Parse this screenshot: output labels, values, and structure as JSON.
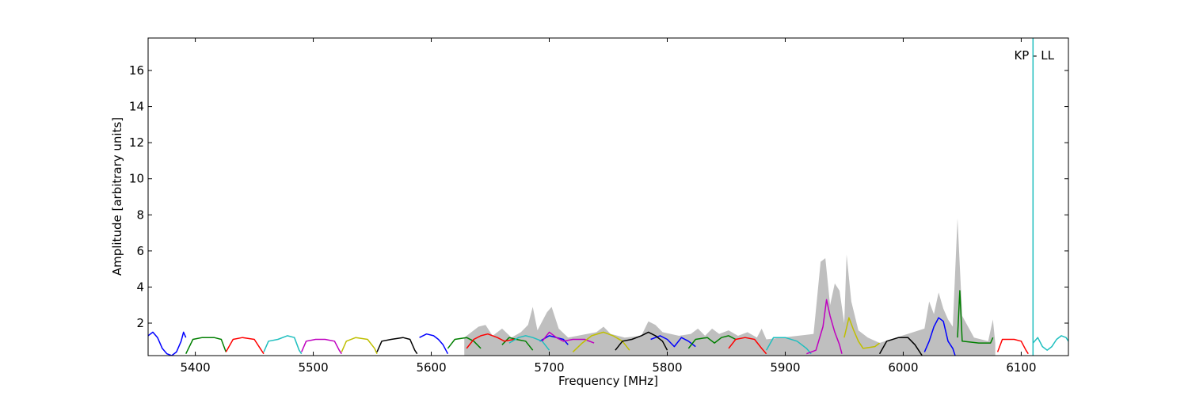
{
  "chart_data": {
    "type": "line",
    "title": "",
    "xlabel": "Frequency [MHz]",
    "ylabel": "Amplitude [arbitrary units]",
    "xlim": [
      5360,
      6140
    ],
    "ylim": [
      0.2,
      17.8
    ],
    "x_ticks": [
      5400,
      5500,
      5600,
      5700,
      5800,
      5900,
      6000,
      6100
    ],
    "y_ticks": [
      2,
      4,
      6,
      8,
      10,
      12,
      14,
      16
    ],
    "grid": false,
    "legend": "none",
    "annotation": "KP - LL",
    "spike": {
      "x": 6110,
      "y": 17.8,
      "color": "#1fbfbf"
    },
    "envelope": {
      "color": "#bfbfbf",
      "points": [
        [
          5628,
          1.2
        ],
        [
          5640,
          1.8
        ],
        [
          5646,
          1.9
        ],
        [
          5652,
          1.3
        ],
        [
          5660,
          1.7
        ],
        [
          5668,
          1.2
        ],
        [
          5676,
          1.5
        ],
        [
          5682,
          1.9
        ],
        [
          5686,
          2.9
        ],
        [
          5690,
          1.6
        ],
        [
          5694,
          2.1
        ],
        [
          5698,
          2.6
        ],
        [
          5702,
          2.9
        ],
        [
          5708,
          1.7
        ],
        [
          5716,
          1.2
        ],
        [
          5740,
          1.5
        ],
        [
          5746,
          1.8
        ],
        [
          5752,
          1.4
        ],
        [
          5764,
          1.2
        ],
        [
          5778,
          1.3
        ],
        [
          5784,
          2.1
        ],
        [
          5790,
          1.9
        ],
        [
          5796,
          1.5
        ],
        [
          5810,
          1.3
        ],
        [
          5820,
          1.4
        ],
        [
          5826,
          1.7
        ],
        [
          5832,
          1.3
        ],
        [
          5838,
          1.7
        ],
        [
          5844,
          1.4
        ],
        [
          5852,
          1.6
        ],
        [
          5860,
          1.3
        ],
        [
          5868,
          1.5
        ],
        [
          5876,
          1.2
        ],
        [
          5880,
          1.7
        ],
        [
          5884,
          1.1
        ],
        [
          5924,
          1.4
        ],
        [
          5930,
          5.4
        ],
        [
          5934,
          5.6
        ],
        [
          5938,
          3.0
        ],
        [
          5942,
          4.2
        ],
        [
          5946,
          3.8
        ],
        [
          5950,
          2.0
        ],
        [
          5952,
          5.8
        ],
        [
          5956,
          3.2
        ],
        [
          5962,
          1.6
        ],
        [
          5970,
          1.2
        ],
        [
          5980,
          0.9
        ],
        [
          6018,
          1.7
        ],
        [
          6022,
          3.2
        ],
        [
          6026,
          2.5
        ],
        [
          6030,
          3.7
        ],
        [
          6034,
          2.8
        ],
        [
          6038,
          2.2
        ],
        [
          6042,
          1.8
        ],
        [
          6046,
          7.8
        ],
        [
          6050,
          2.4
        ],
        [
          6060,
          1.2
        ],
        [
          6072,
          1.0
        ],
        [
          6076,
          2.2
        ],
        [
          6078,
          0.9
        ]
      ]
    },
    "series": [
      {
        "color": "#0000ff",
        "segments": [
          [
            [
              5360,
              1.3
            ],
            [
              5364,
              1.5
            ],
            [
              5368,
              1.2
            ],
            [
              5372,
              0.6
            ],
            [
              5376,
              0.3
            ],
            [
              5380,
              0.2
            ],
            [
              5384,
              0.4
            ],
            [
              5388,
              1.0
            ],
            [
              5390,
              1.5
            ],
            [
              5392,
              1.2
            ]
          ],
          [
            [
              5590,
              1.2
            ],
            [
              5596,
              1.4
            ],
            [
              5602,
              1.3
            ],
            [
              5606,
              1.1
            ],
            [
              5610,
              0.8
            ],
            [
              5614,
              0.3
            ]
          ],
          [
            [
              5692,
              1.0
            ],
            [
              5700,
              1.3
            ],
            [
              5706,
              1.2
            ],
            [
              5712,
              1.1
            ],
            [
              5716,
              0.8
            ]
          ],
          [
            [
              5786,
              1.1
            ],
            [
              5794,
              1.3
            ],
            [
              5800,
              1.1
            ],
            [
              5806,
              0.7
            ],
            [
              5812,
              1.2
            ],
            [
              5818,
              1.0
            ],
            [
              5824,
              0.7
            ]
          ],
          [
            [
              6018,
              0.4
            ],
            [
              6022,
              1.0
            ],
            [
              6026,
              1.8
            ],
            [
              6030,
              2.3
            ],
            [
              6034,
              2.1
            ],
            [
              6038,
              1.0
            ],
            [
              6042,
              0.6
            ],
            [
              6044,
              0.2
            ]
          ]
        ]
      },
      {
        "color": "#007f00",
        "segments": [
          [
            [
              5392,
              0.3
            ],
            [
              5398,
              1.1
            ],
            [
              5406,
              1.2
            ],
            [
              5416,
              1.2
            ],
            [
              5422,
              1.1
            ],
            [
              5426,
              0.4
            ]
          ],
          [
            [
              5614,
              0.6
            ],
            [
              5620,
              1.1
            ],
            [
              5630,
              1.2
            ],
            [
              5636,
              1.0
            ],
            [
              5642,
              0.6
            ]
          ],
          [
            [
              5660,
              0.8
            ],
            [
              5666,
              1.2
            ],
            [
              5672,
              1.1
            ],
            [
              5680,
              1.0
            ],
            [
              5686,
              0.5
            ]
          ],
          [
            [
              5818,
              0.6
            ],
            [
              5824,
              1.1
            ],
            [
              5834,
              1.2
            ],
            [
              5840,
              0.9
            ],
            [
              5846,
              1.2
            ],
            [
              5852,
              1.3
            ],
            [
              5858,
              1.1
            ]
          ],
          [
            [
              6046,
              1.2
            ],
            [
              6048,
              3.8
            ],
            [
              6050,
              1.0
            ],
            [
              6064,
              0.9
            ],
            [
              6074,
              0.9
            ],
            [
              6076,
              1.2
            ]
          ]
        ]
      },
      {
        "color": "#ff0000",
        "segments": [
          [
            [
              5426,
              0.4
            ],
            [
              5432,
              1.1
            ],
            [
              5440,
              1.2
            ],
            [
              5450,
              1.1
            ],
            [
              5456,
              0.5
            ],
            [
              5458,
              0.3
            ]
          ],
          [
            [
              5630,
              0.6
            ],
            [
              5636,
              1.1
            ],
            [
              5642,
              1.3
            ],
            [
              5648,
              1.4
            ],
            [
              5656,
              1.2
            ],
            [
              5662,
              1.0
            ],
            [
              5670,
              1.1
            ]
          ],
          [
            [
              5852,
              0.6
            ],
            [
              5858,
              1.1
            ],
            [
              5866,
              1.2
            ],
            [
              5874,
              1.1
            ],
            [
              5880,
              0.6
            ],
            [
              5884,
              0.3
            ]
          ],
          [
            [
              6080,
              0.4
            ],
            [
              6084,
              1.1
            ],
            [
              6094,
              1.1
            ],
            [
              6100,
              1.0
            ],
            [
              6104,
              0.5
            ],
            [
              6106,
              0.3
            ]
          ]
        ]
      },
      {
        "color": "#1fbfbf",
        "segments": [
          [
            [
              5458,
              0.4
            ],
            [
              5462,
              1.0
            ],
            [
              5470,
              1.1
            ],
            [
              5478,
              1.3
            ],
            [
              5484,
              1.2
            ],
            [
              5488,
              0.5
            ],
            [
              5490,
              0.3
            ]
          ],
          [
            [
              5666,
              0.9
            ],
            [
              5674,
              1.2
            ],
            [
              5680,
              1.3
            ],
            [
              5686,
              1.2
            ],
            [
              5694,
              1.0
            ],
            [
              5700,
              0.5
            ]
          ],
          [
            [
              5884,
              0.5
            ],
            [
              5890,
              1.2
            ],
            [
              5900,
              1.2
            ],
            [
              5910,
              1.0
            ],
            [
              5918,
              0.6
            ],
            [
              5922,
              0.3
            ]
          ],
          [
            [
              6110,
              0.9
            ],
            [
              6114,
              1.2
            ],
            [
              6118,
              0.7
            ],
            [
              6122,
              0.5
            ],
            [
              6126,
              0.7
            ],
            [
              6130,
              1.1
            ],
            [
              6134,
              1.3
            ],
            [
              6138,
              1.2
            ],
            [
              6140,
              1.0
            ]
          ]
        ]
      },
      {
        "color": "#bf00bf",
        "segments": [
          [
            [
              5490,
              0.4
            ],
            [
              5494,
              1.0
            ],
            [
              5502,
              1.1
            ],
            [
              5510,
              1.1
            ],
            [
              5518,
              1.0
            ],
            [
              5522,
              0.5
            ],
            [
              5524,
              0.3
            ]
          ],
          [
            [
              5694,
              1.0
            ],
            [
              5700,
              1.5
            ],
            [
              5706,
              1.2
            ],
            [
              5712,
              1.0
            ],
            [
              5720,
              1.1
            ],
            [
              5730,
              1.1
            ],
            [
              5738,
              0.9
            ]
          ],
          [
            [
              5918,
              0.3
            ],
            [
              5926,
              0.5
            ],
            [
              5932,
              1.8
            ],
            [
              5935,
              3.3
            ],
            [
              5938,
              2.4
            ],
            [
              5942,
              1.5
            ],
            [
              5946,
              0.8
            ],
            [
              5948,
              0.3
            ]
          ]
        ]
      },
      {
        "color": "#bfbf00",
        "segments": [
          [
            [
              5524,
              0.4
            ],
            [
              5528,
              1.0
            ],
            [
              5536,
              1.2
            ],
            [
              5546,
              1.1
            ],
            [
              5552,
              0.6
            ],
            [
              5554,
              0.3
            ]
          ],
          [
            [
              5720,
              0.4
            ],
            [
              5728,
              0.9
            ],
            [
              5736,
              1.3
            ],
            [
              5746,
              1.5
            ],
            [
              5754,
              1.3
            ],
            [
              5762,
              1.0
            ],
            [
              5768,
              0.5
            ]
          ],
          [
            [
              5950,
              1.2
            ],
            [
              5954,
              2.3
            ],
            [
              5958,
              1.6
            ],
            [
              5962,
              1.0
            ],
            [
              5966,
              0.6
            ],
            [
              5976,
              0.7
            ],
            [
              5980,
              0.9
            ]
          ]
        ]
      },
      {
        "color": "#000000",
        "segments": [
          [
            [
              5554,
              0.4
            ],
            [
              5558,
              1.0
            ],
            [
              5566,
              1.1
            ],
            [
              5576,
              1.2
            ],
            [
              5582,
              1.1
            ],
            [
              5586,
              0.5
            ],
            [
              5588,
              0.3
            ]
          ],
          [
            [
              5756,
              0.5
            ],
            [
              5762,
              1.0
            ],
            [
              5770,
              1.1
            ],
            [
              5778,
              1.3
            ],
            [
              5784,
              1.5
            ],
            [
              5790,
              1.3
            ],
            [
              5796,
              1.0
            ],
            [
              5800,
              0.5
            ]
          ],
          [
            [
              5980,
              0.3
            ],
            [
              5986,
              1.0
            ],
            [
              5996,
              1.2
            ],
            [
              6004,
              1.2
            ],
            [
              6010,
              0.8
            ],
            [
              6016,
              0.2
            ]
          ]
        ]
      }
    ]
  }
}
